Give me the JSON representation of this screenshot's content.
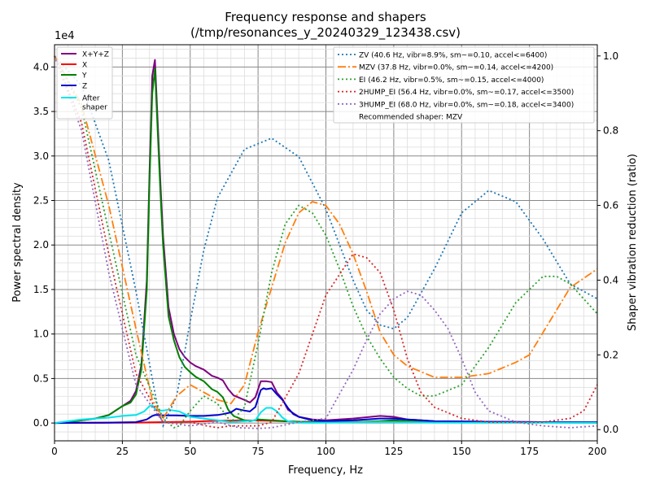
{
  "chart_data": {
    "type": "line",
    "title": "Frequency response and shapers",
    "subtitle": "(/tmp/resonances_y_20240329_123438.csv)",
    "xlabel": "Frequency, Hz",
    "ylabel": "Power spectral density",
    "y2label": "Shaper vibration reduction (ratio)",
    "y_multiplier": "1e4",
    "xlim": [
      0,
      200
    ],
    "ylim": [
      -2000,
      42500
    ],
    "y2lim": [
      -0.03,
      1.03
    ],
    "x_ticks": [
      "0",
      "25",
      "50",
      "75",
      "100",
      "125",
      "150",
      "175",
      "200"
    ],
    "y_ticks": [
      "0.0",
      "0.5",
      "1.0",
      "1.5",
      "2.0",
      "2.5",
      "3.0",
      "3.5",
      "4.0"
    ],
    "y2_ticks": [
      "0.0",
      "0.2",
      "0.4",
      "0.6",
      "0.8",
      "1.0"
    ],
    "grid": true,
    "legend_left": {
      "placement": "top-left",
      "entries": [
        "X+Y+Z",
        "X",
        "Y",
        "Z",
        "After\nshaper"
      ]
    },
    "legend_right": {
      "placement": "top-right",
      "entries": [
        "ZV (40.6 Hz, vibr=8.9%, sm~=0.10, accel<=6400)",
        "MZV (37.8 Hz, vibr=0.0%, sm~=0.14, accel<=4200)",
        "EI (46.2 Hz, vibr=0.5%, sm~=0.15, accel<=4000)",
        "2HUMP_EI (56.4 Hz, vibr=0.0%, sm~=0.17, accel<=3500)",
        "3HUMP_EI (68.0 Hz, vibr=0.0%, sm~=0.18, accel<=3400)",
        "Recommended shaper: MZV"
      ]
    },
    "psd_series": [
      {
        "name": "X+Y+Z",
        "color": "#800080",
        "x": [
          0,
          5,
          10,
          15,
          20,
          25,
          28,
          30,
          32,
          34,
          35,
          36,
          37,
          38,
          39,
          40,
          42,
          44,
          46,
          48,
          50,
          52,
          55,
          58,
          60,
          62,
          64,
          66,
          70,
          72,
          74,
          76,
          78,
          80,
          82,
          84,
          86,
          90,
          95,
          100,
          110,
          120,
          125,
          130,
          140,
          160,
          180,
          200
        ],
        "y": [
          0,
          100,
          300,
          500,
          900,
          1900,
          2500,
          3600,
          6500,
          16000,
          28000,
          39000,
          40800,
          34000,
          27000,
          21000,
          13000,
          10000,
          8300,
          7400,
          6800,
          6400,
          6000,
          5300,
          5100,
          4800,
          3800,
          3100,
          2600,
          2300,
          2900,
          4700,
          4700,
          4600,
          3400,
          2700,
          1500,
          700,
          400,
          300,
          500,
          800,
          700,
          400,
          200,
          150,
          100,
          100
        ]
      },
      {
        "name": "X",
        "color": "#ff0000",
        "x": [
          0,
          10,
          20,
          30,
          35,
          40,
          45,
          50,
          55,
          60,
          70,
          80,
          90,
          100,
          120,
          140,
          160,
          180,
          200
        ],
        "y": [
          0,
          20,
          30,
          50,
          80,
          100,
          120,
          150,
          200,
          250,
          300,
          250,
          150,
          100,
          150,
          100,
          80,
          60,
          50
        ]
      },
      {
        "name": "Y",
        "color": "#008000",
        "x": [
          0,
          5,
          10,
          15,
          20,
          25,
          28,
          30,
          32,
          34,
          35,
          36,
          37,
          38,
          39,
          40,
          42,
          44,
          46,
          48,
          50,
          52,
          55,
          58,
          60,
          62,
          64,
          66,
          70,
          72,
          75,
          80,
          85,
          90,
          100,
          110,
          120,
          125,
          130,
          140,
          160,
          180,
          200
        ],
        "y": [
          0,
          100,
          300,
          500,
          900,
          1900,
          2300,
          3200,
          6000,
          15000,
          27000,
          37000,
          39800,
          33000,
          26000,
          20000,
          12000,
          9300,
          7400,
          6300,
          5700,
          5200,
          4700,
          3800,
          3500,
          2900,
          1500,
          800,
          300,
          200,
          400,
          300,
          200,
          150,
          100,
          100,
          200,
          300,
          200,
          100,
          80,
          60,
          50
        ]
      },
      {
        "name": "Z",
        "color": "#0000cc",
        "x": [
          0,
          10,
          20,
          30,
          34,
          36,
          37,
          38,
          40,
          45,
          50,
          55,
          60,
          62,
          65,
          67,
          70,
          72,
          74,
          76,
          77,
          78,
          80,
          82,
          84,
          86,
          88,
          90,
          95,
          100,
          110,
          120,
          125,
          130,
          140,
          160,
          180,
          200
        ],
        "y": [
          0,
          30,
          50,
          100,
          400,
          800,
          900,
          900,
          850,
          850,
          800,
          800,
          900,
          1000,
          1200,
          1600,
          1400,
          1300,
          1800,
          3700,
          3900,
          3800,
          3900,
          3200,
          2600,
          1700,
          1000,
          700,
          300,
          200,
          300,
          500,
          500,
          400,
          200,
          150,
          100,
          100
        ]
      },
      {
        "name": "After shaper",
        "color": "#00e5ee",
        "x": [
          0,
          5,
          10,
          15,
          20,
          25,
          30,
          33,
          35,
          36,
          37,
          38,
          40,
          42,
          44,
          46,
          48,
          50,
          55,
          60,
          65,
          70,
          74,
          76,
          78,
          80,
          82,
          84,
          86,
          88,
          90,
          95,
          100,
          110,
          120,
          130,
          140,
          160,
          180,
          200
        ],
        "y": [
          0,
          200,
          400,
          500,
          600,
          800,
          900,
          1300,
          1900,
          2000,
          1600,
          1400,
          1400,
          1500,
          1400,
          1300,
          1000,
          700,
          500,
          300,
          100,
          200,
          300,
          1200,
          1700,
          1700,
          1300,
          600,
          200,
          100,
          50,
          30,
          50,
          80,
          100,
          80,
          50,
          40,
          30,
          30
        ]
      }
    ],
    "shaper_series": [
      {
        "name": "ZV (40.6 Hz, vibr=8.9%, sm~=0.10, accel<=6400)",
        "color": "#1f77b4",
        "dash": "2,3",
        "x": [
          0,
          10,
          20,
          30,
          38,
          40,
          45,
          50,
          55,
          60,
          70,
          80,
          90,
          100,
          110,
          115,
          120,
          125,
          130,
          140,
          150,
          160,
          170,
          180,
          190,
          200
        ],
        "y": [
          1,
          0.92,
          0.72,
          0.37,
          0.06,
          0.01,
          0.09,
          0.29,
          0.48,
          0.62,
          0.75,
          0.78,
          0.73,
          0.59,
          0.4,
          0.32,
          0.28,
          0.27,
          0.3,
          0.43,
          0.58,
          0.64,
          0.61,
          0.51,
          0.39,
          0.35
        ]
      },
      {
        "name": "MZV (37.8 Hz, vibr=0.0%, sm~=0.14, accel<=4200)",
        "color": "#ff7f0e",
        "dash": "10,3,2,3",
        "x": [
          0,
          10,
          20,
          30,
          36,
          40,
          45,
          50,
          55,
          60,
          65,
          70,
          75,
          80,
          85,
          90,
          95,
          100,
          105,
          110,
          115,
          120,
          125,
          130,
          140,
          150,
          160,
          170,
          175,
          180,
          190,
          200
        ],
        "y": [
          1,
          0.87,
          0.6,
          0.27,
          0.08,
          0.03,
          0.09,
          0.12,
          0.1,
          0.08,
          0.07,
          0.12,
          0.26,
          0.38,
          0.5,
          0.58,
          0.61,
          0.6,
          0.55,
          0.47,
          0.37,
          0.26,
          0.2,
          0.17,
          0.14,
          0.14,
          0.15,
          0.18,
          0.2,
          0.26,
          0.38,
          0.43
        ]
      },
      {
        "name": "EI (46.2 Hz, vibr=0.5%, sm~=0.15, accel<=4000)",
        "color": "#2ca02c",
        "dash": "2,3",
        "x": [
          0,
          10,
          20,
          30,
          40,
          44,
          46,
          50,
          55,
          60,
          65,
          70,
          75,
          80,
          85,
          90,
          95,
          100,
          105,
          110,
          115,
          120,
          125,
          130,
          135,
          140,
          150,
          160,
          170,
          180,
          185,
          190,
          200
        ],
        "y": [
          1,
          0.86,
          0.53,
          0.2,
          0.03,
          0.005,
          0.01,
          0.05,
          0.09,
          0.07,
          0.02,
          0.06,
          0.23,
          0.42,
          0.55,
          0.6,
          0.58,
          0.52,
          0.43,
          0.33,
          0.25,
          0.19,
          0.14,
          0.11,
          0.09,
          0.09,
          0.12,
          0.22,
          0.34,
          0.41,
          0.41,
          0.39,
          0.31
        ]
      },
      {
        "name": "2HUMP_EI (56.4 Hz, vibr=0.0%, sm~=0.17, accel<=3500)",
        "color": "#d62728",
        "dash": "2,3",
        "x": [
          0,
          10,
          20,
          30,
          40,
          50,
          56,
          60,
          65,
          70,
          75,
          80,
          90,
          100,
          110,
          115,
          120,
          125,
          130,
          135,
          140,
          150,
          160,
          170,
          180,
          190,
          195,
          200
        ],
        "y": [
          1,
          0.82,
          0.47,
          0.15,
          0.02,
          0.02,
          0.01,
          0.005,
          0.01,
          0.01,
          0.01,
          0.02,
          0.15,
          0.36,
          0.47,
          0.46,
          0.42,
          0.32,
          0.19,
          0.1,
          0.06,
          0.03,
          0.02,
          0.02,
          0.02,
          0.03,
          0.05,
          0.12
        ]
      },
      {
        "name": "3HUMP_EI (68.0 Hz, vibr=0.0%, sm~=0.18, accel<=3400)",
        "color": "#9467bd",
        "dash": "2,3",
        "x": [
          0,
          10,
          20,
          30,
          40,
          50,
          60,
          68,
          75,
          80,
          90,
          100,
          110,
          115,
          120,
          125,
          130,
          135,
          140,
          145,
          150,
          155,
          160,
          170,
          180,
          190,
          200
        ],
        "y": [
          1,
          0.8,
          0.42,
          0.12,
          0.02,
          0.01,
          0.02,
          0.005,
          0.003,
          0.005,
          0.02,
          0.03,
          0.16,
          0.24,
          0.31,
          0.35,
          0.37,
          0.36,
          0.32,
          0.27,
          0.19,
          0.1,
          0.05,
          0.02,
          0.01,
          0.005,
          0.01
        ]
      }
    ]
  }
}
